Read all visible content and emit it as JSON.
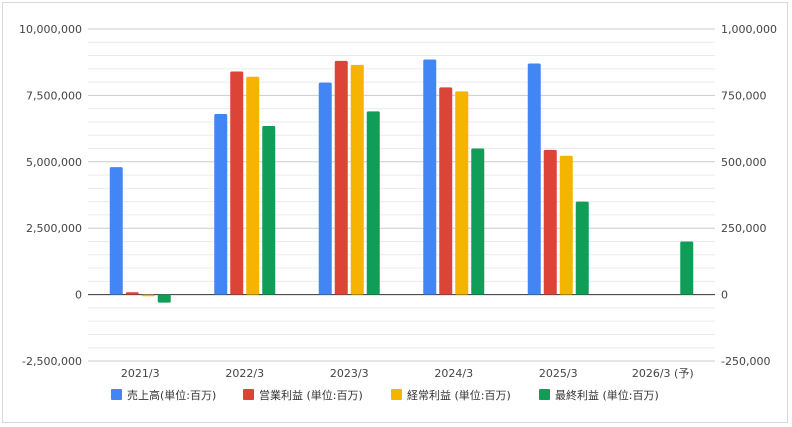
{
  "chart_data": {
    "type": "bar",
    "categories": [
      "2021/3",
      "2022/3",
      "2023/3",
      "2024/3",
      "2025/3",
      "2026/3 (予)"
    ],
    "series": [
      {
        "name": "売上高(単位:百万)",
        "color": "#4285f4",
        "axis": "left",
        "values": [
          4800000,
          6800000,
          7980000,
          8850000,
          8700000,
          null
        ]
      },
      {
        "name": "営業利益 (単位:百万)",
        "color": "#db4437",
        "axis": "left",
        "values": [
          90000,
          8400000,
          8800000,
          7800000,
          5450000,
          null
        ]
      },
      {
        "name": "経常利益 (単位:百万)",
        "color": "#f4b400",
        "axis": "left",
        "values": [
          -60000,
          8200000,
          8650000,
          7650000,
          5230000,
          null
        ]
      },
      {
        "name": "最終利益 (単位:百万)",
        "color": "#0f9d58",
        "axis": "right",
        "values": [
          -30000,
          635000,
          690000,
          550000,
          350000,
          200000
        ]
      }
    ],
    "y_left": {
      "ylim": [
        -2500000,
        10000000
      ],
      "ticks": [
        "10,000,000",
        "7,500,000",
        "5,000,000",
        "2,500,000",
        "0",
        "-2,500,000"
      ]
    },
    "y_right": {
      "ylim": [
        -250000,
        1000000
      ],
      "ticks": [
        "1,000,000",
        "750,000",
        "500,000",
        "250,000",
        "0",
        "-250,000"
      ]
    },
    "grid": true,
    "legend_position": "bottom"
  }
}
